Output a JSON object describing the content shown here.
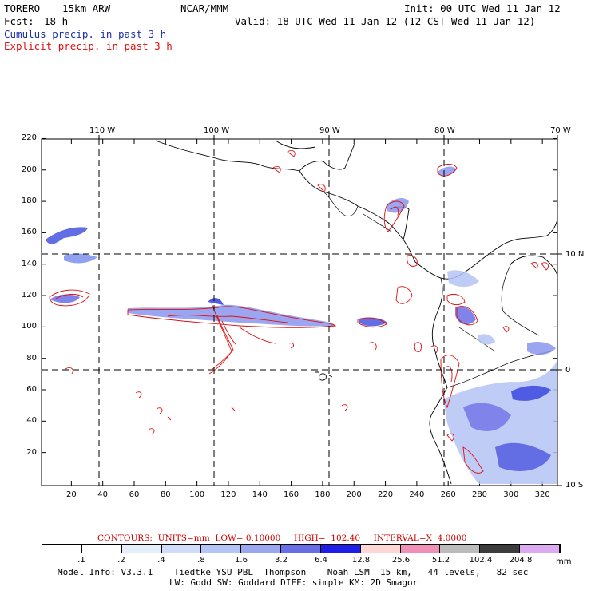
{
  "header": {
    "model": "TORERO",
    "resolution": "15km ARW",
    "org": "NCAR/MMM",
    "init": "Init: 00 UTC Wed 11 Jan 12",
    "fcst_label": "Fcst:",
    "fcst_value": "18 h",
    "valid": "Valid: 18 UTC Wed 11 Jan 12 (12 CST Wed 11 Jan 12)",
    "line_cumulus": "Cumulus precip. in past 3 h",
    "line_explicit": "Explicit precip. in past 3 h",
    "color_cumulus": "#1f2fa8",
    "color_explicit": "#e01010"
  },
  "map": {
    "lon_labels": [
      "110 W",
      "100 W",
      "90 W",
      "80 W",
      "70 W"
    ],
    "lat_labels": [
      "10 N",
      "0",
      "10 S"
    ],
    "y_ticks": [
      "220",
      "200",
      "180",
      "160",
      "140",
      "120",
      "100",
      "80",
      "60",
      "40",
      "20"
    ],
    "x_ticks": [
      "20",
      "40",
      "60",
      "80",
      "100",
      "120",
      "140",
      "160",
      "180",
      "200",
      "220",
      "240",
      "260",
      "280",
      "300",
      "320"
    ]
  },
  "contour_info": {
    "text": "CONTOURS:  UNITS=mm  LOW= 0.10000     HIGH=  102.40     INTERVAL=X  4.0000",
    "color": "#cc0000"
  },
  "colorbar": {
    "labels": [
      ".1",
      ".2",
      ".4",
      ".8",
      "1.6",
      "3.2",
      "6.4",
      "12.8",
      "25.6",
      "51.2",
      "102.4",
      "204.8"
    ],
    "unit": "mm",
    "colors": [
      "#ffffff",
      "#ffffff",
      "#e6eefc",
      "#d0dcf8",
      "#b4c4f4",
      "#9aa6ee",
      "#6a6ee6",
      "#1e1ee6",
      "#ffd6d6",
      "#f090b8",
      "#bcbcbc",
      "#3c3c3c",
      "#dcaaf0"
    ]
  },
  "footer": {
    "line1": "Model Info: V3.3.1    Tiedtke YSU PBL  Thompson    Noah LSM  15 km,   44 levels,   82 sec",
    "line2": "LW: Godd SW: Goddard DIFF: simple KM: 2D Smagor"
  }
}
